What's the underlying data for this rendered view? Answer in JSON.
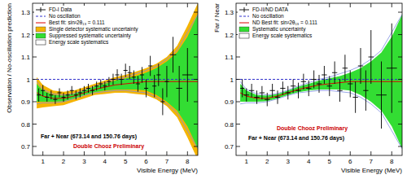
{
  "chart_data": [
    {
      "type": "scatter",
      "xlabel": "Visible Energy (MeV)",
      "ylabel": "Observation / No-oscillation prediction",
      "xlim": [
        0.5,
        8.5
      ],
      "xticks": [
        1,
        2,
        3,
        4,
        5,
        6,
        7,
        8
      ],
      "ylim": [
        0.66,
        1.34
      ],
      "yticks": [
        0.7,
        0.8,
        0.9,
        1,
        1.1,
        1.2,
        1.3
      ],
      "grid": false,
      "legend": "top-left",
      "annotations": [
        {
          "text": "Far + Near (673.14 and 150.76 days)",
          "color": "#000000"
        },
        {
          "text": "Double Chooz Preliminary",
          "color": "#cc0000"
        }
      ],
      "series": [
        {
          "name": "FD-I Data",
          "type": "scatter",
          "marker": "cross",
          "color": "#000000",
          "x": [
            0.8,
            1.0,
            1.2,
            1.4,
            1.6,
            1.8,
            2.0,
            2.2,
            2.4,
            2.6,
            2.8,
            3.0,
            3.2,
            3.4,
            3.6,
            3.8,
            4.0,
            4.2,
            4.4,
            4.6,
            4.8,
            5.0,
            5.2,
            5.4,
            5.6,
            5.8,
            6.0,
            6.2,
            6.4,
            6.6,
            6.8,
            7.0,
            7.3,
            7.6,
            8.0
          ],
          "values": [
            0.93,
            0.95,
            0.92,
            0.93,
            0.91,
            0.94,
            0.92,
            0.93,
            0.95,
            0.93,
            0.94,
            0.95,
            0.96,
            0.95,
            0.97,
            0.98,
            0.97,
            0.99,
            1.0,
            1.02,
            1.0,
            1.04,
            1.03,
            1.01,
            0.98,
            1.02,
            0.96,
            1.06,
            0.97,
            1.02,
            0.9,
            0.99,
            1.11,
            0.96,
            1.02
          ],
          "errors": [
            0.03,
            0.025,
            0.02,
            0.02,
            0.02,
            0.02,
            0.02,
            0.02,
            0.02,
            0.02,
            0.02,
            0.02,
            0.02,
            0.02,
            0.02,
            0.02,
            0.02,
            0.02,
            0.025,
            0.025,
            0.025,
            0.03,
            0.03,
            0.03,
            0.035,
            0.035,
            0.04,
            0.045,
            0.05,
            0.05,
            0.06,
            0.07,
            0.08,
            0.1,
            0.12
          ],
          "xerrors": [
            0.1,
            0.1,
            0.1,
            0.1,
            0.1,
            0.1,
            0.1,
            0.1,
            0.1,
            0.1,
            0.1,
            0.1,
            0.1,
            0.1,
            0.1,
            0.1,
            0.1,
            0.1,
            0.1,
            0.1,
            0.1,
            0.1,
            0.1,
            0.1,
            0.1,
            0.1,
            0.1,
            0.1,
            0.1,
            0.1,
            0.1,
            0.1,
            0.15,
            0.15,
            0.25
          ]
        },
        {
          "name": "No oscillation",
          "type": "line",
          "line_style": "dashed",
          "color": "#3333cc",
          "x": [
            0.5,
            8.5
          ],
          "values": [
            1,
            1
          ]
        },
        {
          "name": "Best fit: sin²2θ₁₃ = 0.111",
          "type": "line",
          "line_style": "solid",
          "color": "#dd0000",
          "x": [
            0.7,
            1,
            1.5,
            2,
            2.5,
            3,
            3.5,
            4,
            4.5,
            5,
            5.5,
            6,
            6.5,
            7,
            7.5,
            8,
            8.5
          ],
          "values": [
            0.94,
            0.925,
            0.915,
            0.915,
            0.925,
            0.94,
            0.955,
            0.965,
            0.975,
            0.98,
            0.985,
            0.99,
            0.99,
            0.99,
            0.99,
            0.99,
            0.99
          ]
        },
        {
          "name": "Single detector systematic uncertainty",
          "type": "area",
          "color": "#f5b400",
          "x": [
            0.7,
            1,
            1.5,
            2,
            2.5,
            3,
            3.5,
            4,
            4.5,
            5,
            5.5,
            6,
            6.5,
            7,
            7.5,
            8,
            8.5
          ],
          "lower": [
            0.87,
            0.875,
            0.88,
            0.885,
            0.9,
            0.915,
            0.93,
            0.935,
            0.94,
            0.94,
            0.935,
            0.93,
            0.91,
            0.88,
            0.83,
            0.74,
            0.64
          ],
          "upper": [
            1.01,
            0.975,
            0.95,
            0.945,
            0.95,
            0.965,
            0.98,
            0.995,
            1.01,
            1.02,
            1.035,
            1.05,
            1.07,
            1.1,
            1.15,
            1.24,
            1.34
          ]
        },
        {
          "name": "Suppressed systematic uncertainty",
          "type": "area",
          "color": "#33dd33",
          "x": [
            0.7,
            1,
            1.5,
            2,
            2.5,
            3,
            3.5,
            4,
            4.5,
            5,
            5.5,
            6,
            6.5,
            7,
            7.5,
            8,
            8.5
          ],
          "lower": [
            0.9,
            0.9,
            0.9,
            0.903,
            0.915,
            0.93,
            0.943,
            0.95,
            0.955,
            0.955,
            0.955,
            0.95,
            0.93,
            0.9,
            0.86,
            0.79,
            0.69
          ],
          "upper": [
            0.98,
            0.95,
            0.93,
            0.927,
            0.935,
            0.95,
            0.967,
            0.98,
            0.995,
            1.005,
            1.015,
            1.03,
            1.05,
            1.08,
            1.12,
            1.19,
            1.29
          ]
        },
        {
          "name": "Energy scale systematics",
          "type": "area_outline",
          "color": "#8090e0",
          "x": [
            0.7,
            1,
            1.5,
            2,
            2.5,
            3,
            3.5,
            4,
            4.5,
            5,
            5.5,
            6,
            6.5,
            7,
            7.5,
            8,
            8.5
          ],
          "lower": [
            0.89,
            0.895,
            0.895,
            0.9,
            0.913,
            0.928,
            0.94,
            0.945,
            0.95,
            0.95,
            0.945,
            0.94,
            0.92,
            0.89,
            0.85,
            0.77,
            0.69
          ],
          "upper": [
            0.99,
            0.955,
            0.935,
            0.93,
            0.937,
            0.952,
            0.97,
            0.985,
            1.0,
            1.01,
            1.025,
            1.04,
            1.06,
            1.09,
            1.13,
            1.21,
            1.29
          ]
        }
      ]
    },
    {
      "type": "scatter",
      "xlabel": "Visible Energy (MeV)",
      "ylabel": "Far / Near",
      "xlim": [
        0.5,
        8.5
      ],
      "xticks": [
        1,
        2,
        3,
        4,
        5,
        6,
        7,
        8
      ],
      "ylim": [
        0.66,
        1.34
      ],
      "yticks": [
        0.7,
        0.8,
        0.9,
        1,
        1.1,
        1.2,
        1.3
      ],
      "grid": false,
      "legend": "top-left",
      "annotations": [
        {
          "text": "Double Chooz Preliminary",
          "color": "#cc0000"
        },
        {
          "text": "Far + Near (673.14 and 150.76 days)",
          "color": "#000000"
        }
      ],
      "series": [
        {
          "name": "FD-II/ND DATA",
          "type": "scatter",
          "marker": "cross",
          "color": "#000000",
          "x": [
            0.8,
            1.0,
            1.25,
            1.5,
            1.75,
            2.0,
            2.25,
            2.5,
            2.75,
            3.0,
            3.25,
            3.5,
            3.75,
            4.0,
            4.25,
            4.5,
            4.75,
            5.0,
            5.25,
            5.5,
            5.75,
            6.0,
            6.25,
            6.5,
            6.75,
            7.0,
            7.5,
            8.0
          ],
          "values": [
            0.96,
            0.93,
            0.95,
            0.92,
            0.94,
            0.91,
            0.95,
            0.92,
            0.96,
            0.94,
            0.97,
            0.95,
            0.99,
            0.96,
            1.0,
            0.98,
            1.02,
            0.97,
            1.03,
            0.95,
            1.05,
            0.98,
            0.92,
            1.06,
            0.95,
            1.1,
            0.93,
            1.05
          ],
          "errors": [
            0.04,
            0.03,
            0.03,
            0.03,
            0.03,
            0.03,
            0.03,
            0.03,
            0.03,
            0.03,
            0.03,
            0.035,
            0.035,
            0.035,
            0.04,
            0.04,
            0.04,
            0.045,
            0.05,
            0.05,
            0.06,
            0.06,
            0.07,
            0.08,
            0.09,
            0.12,
            0.15,
            0.2
          ],
          "xerrors": [
            0.1,
            0.125,
            0.125,
            0.125,
            0.125,
            0.125,
            0.125,
            0.125,
            0.125,
            0.125,
            0.125,
            0.125,
            0.125,
            0.125,
            0.125,
            0.125,
            0.125,
            0.125,
            0.125,
            0.125,
            0.125,
            0.125,
            0.125,
            0.125,
            0.125,
            0.125,
            0.25,
            0.25
          ]
        },
        {
          "name": "No oscillation",
          "type": "line",
          "line_style": "dashed",
          "color": "#3333cc",
          "x": [
            0.5,
            8.5
          ],
          "values": [
            1,
            1
          ]
        },
        {
          "name": "ND Best fit: sin²2θ₁₃ = 0.111",
          "type": "line",
          "line_style": "solid",
          "color": "#dd0000",
          "x": [
            0.7,
            1,
            1.5,
            2,
            2.5,
            3,
            3.5,
            4,
            4.5,
            5,
            5.5,
            6,
            6.5,
            7,
            7.5,
            8,
            8.5
          ],
          "values": [
            0.94,
            0.925,
            0.915,
            0.915,
            0.925,
            0.94,
            0.955,
            0.965,
            0.975,
            0.98,
            0.985,
            0.99,
            0.99,
            0.99,
            0.99,
            0.99,
            0.99
          ]
        },
        {
          "name": "Systematic uncertainty",
          "type": "area",
          "color": "#33dd33",
          "x": [
            0.7,
            1,
            1.5,
            2,
            2.5,
            3,
            3.5,
            4,
            4.5,
            5,
            5.5,
            6,
            6.5,
            7,
            7.5,
            8,
            8.5
          ],
          "lower": [
            0.9,
            0.9,
            0.9,
            0.903,
            0.915,
            0.93,
            0.943,
            0.95,
            0.955,
            0.955,
            0.955,
            0.95,
            0.93,
            0.9,
            0.86,
            0.79,
            0.69
          ],
          "upper": [
            0.98,
            0.95,
            0.93,
            0.927,
            0.935,
            0.95,
            0.967,
            0.98,
            0.995,
            1.005,
            1.015,
            1.03,
            1.05,
            1.08,
            1.12,
            1.19,
            1.29
          ]
        },
        {
          "name": "Energy scale systematics",
          "type": "area_outline",
          "color": "#8090e0",
          "x": [
            0.7,
            1,
            1.5,
            2,
            2.5,
            3,
            3.5,
            4,
            4.5,
            5,
            5.5,
            6,
            6.5,
            7,
            7.5,
            8,
            8.5
          ],
          "lower": [
            0.89,
            0.895,
            0.895,
            0.9,
            0.913,
            0.928,
            0.94,
            0.945,
            0.95,
            0.95,
            0.945,
            0.94,
            0.92,
            0.89,
            0.85,
            0.77,
            0.69
          ],
          "upper": [
            0.99,
            0.955,
            0.935,
            0.93,
            0.937,
            0.952,
            0.97,
            0.985,
            1.0,
            1.01,
            1.025,
            1.04,
            1.06,
            1.09,
            1.13,
            1.21,
            1.29
          ]
        }
      ]
    }
  ]
}
